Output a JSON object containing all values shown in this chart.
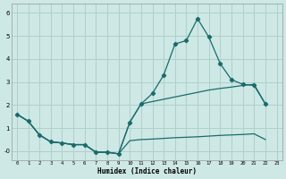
{
  "xlabel": "Humidex (Indice chaleur)",
  "bg_color": "#cde8e5",
  "grid_color": "#b0d0cc",
  "line_color": "#1a6b6b",
  "line1_x": [
    0,
    1,
    2,
    3,
    4,
    5,
    6,
    7,
    8,
    9,
    10,
    11,
    12,
    13,
    14,
    15,
    16,
    17,
    18,
    19,
    20,
    21,
    22
  ],
  "line1_y": [
    1.6,
    1.3,
    0.7,
    0.4,
    0.35,
    0.28,
    0.28,
    -0.05,
    -0.05,
    -0.12,
    1.25,
    2.05,
    2.5,
    3.3,
    4.65,
    4.8,
    5.75,
    4.95,
    3.8,
    3.1,
    2.9,
    2.85,
    2.05
  ],
  "line2_x": [
    0,
    1,
    2,
    3,
    4,
    5,
    6,
    7,
    8,
    9,
    10,
    11,
    12,
    13,
    14,
    15,
    16,
    17,
    18,
    19,
    20,
    21,
    22
  ],
  "line2_y": [
    1.6,
    1.3,
    0.7,
    0.4,
    0.35,
    0.28,
    0.28,
    -0.05,
    -0.05,
    -0.12,
    1.25,
    2.05,
    2.15,
    2.25,
    2.35,
    2.45,
    2.55,
    2.65,
    2.72,
    2.78,
    2.85,
    2.9,
    2.05
  ],
  "line3_x": [
    0,
    1,
    2,
    3,
    4,
    5,
    6,
    7,
    8,
    9,
    10,
    11,
    12,
    13,
    14,
    15,
    16,
    17,
    18,
    19,
    20,
    21,
    22
  ],
  "line3_y": [
    1.6,
    1.3,
    0.7,
    0.4,
    0.35,
    0.28,
    0.28,
    -0.05,
    -0.05,
    -0.12,
    0.45,
    0.5,
    0.52,
    0.55,
    0.58,
    0.6,
    0.62,
    0.65,
    0.68,
    0.7,
    0.72,
    0.75,
    0.5
  ],
  "yticks": [
    -0.0,
    1.0,
    2.0,
    3.0,
    4.0,
    5.0,
    6.0
  ],
  "ytick_labels": [
    "-0",
    "1",
    "2",
    "3",
    "4",
    "5",
    "6"
  ],
  "ylim": [
    -0.4,
    6.4
  ],
  "xlim": [
    -0.5,
    23.5
  ]
}
